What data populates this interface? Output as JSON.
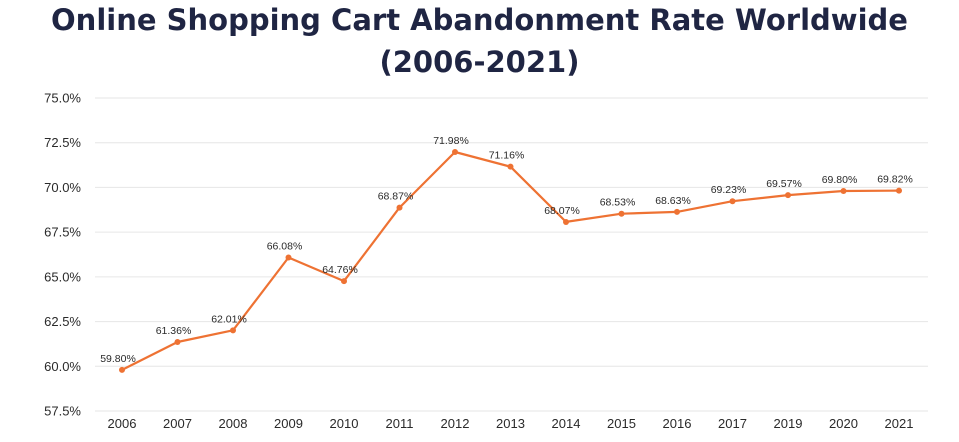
{
  "title_lines": [
    "Online Shopping Cart Abandonment Rate Worldwide",
    "(2006-2021)"
  ],
  "colors": {
    "line": "#ee7233",
    "grid": "#e6e6e6",
    "title": "#1f2543",
    "text": "#2a2a2a"
  },
  "chart_data": {
    "type": "line",
    "title": "Online Shopping Cart Abandonment Rate Worldwide (2006-2021)",
    "xlabel": "",
    "ylabel": "",
    "categories": [
      "2006",
      "2007",
      "2008",
      "2009",
      "2010",
      "2011",
      "2012",
      "2013",
      "2014",
      "2015",
      "2016",
      "2017",
      "2019",
      "2020",
      "2021"
    ],
    "series": [
      {
        "values": [
          59.8,
          61.36,
          62.01,
          66.08,
          64.76,
          68.87,
          71.98,
          71.16,
          68.07,
          68.53,
          68.63,
          69.23,
          69.57,
          69.8,
          69.82
        ],
        "labels": [
          "59.80%",
          "61.36%",
          "62.01%",
          "66.08%",
          "64.76%",
          "68.87%",
          "71.98%",
          "71.16%",
          "68.07%",
          "68.53%",
          "68.63%",
          "69.23%",
          "69.57%",
          "69.80%",
          "69.82%"
        ]
      }
    ],
    "ylim": [
      57.5,
      75.0
    ],
    "yticks": [
      57.5,
      60.0,
      62.5,
      65.0,
      67.5,
      70.0,
      72.5,
      75.0
    ],
    "ytick_labels": [
      "57.5%",
      "60.0%",
      "62.5%",
      "65.0%",
      "67.5%",
      "70.0%",
      "72.5%",
      "75.0%"
    ],
    "grid": true,
    "legend": "none"
  }
}
